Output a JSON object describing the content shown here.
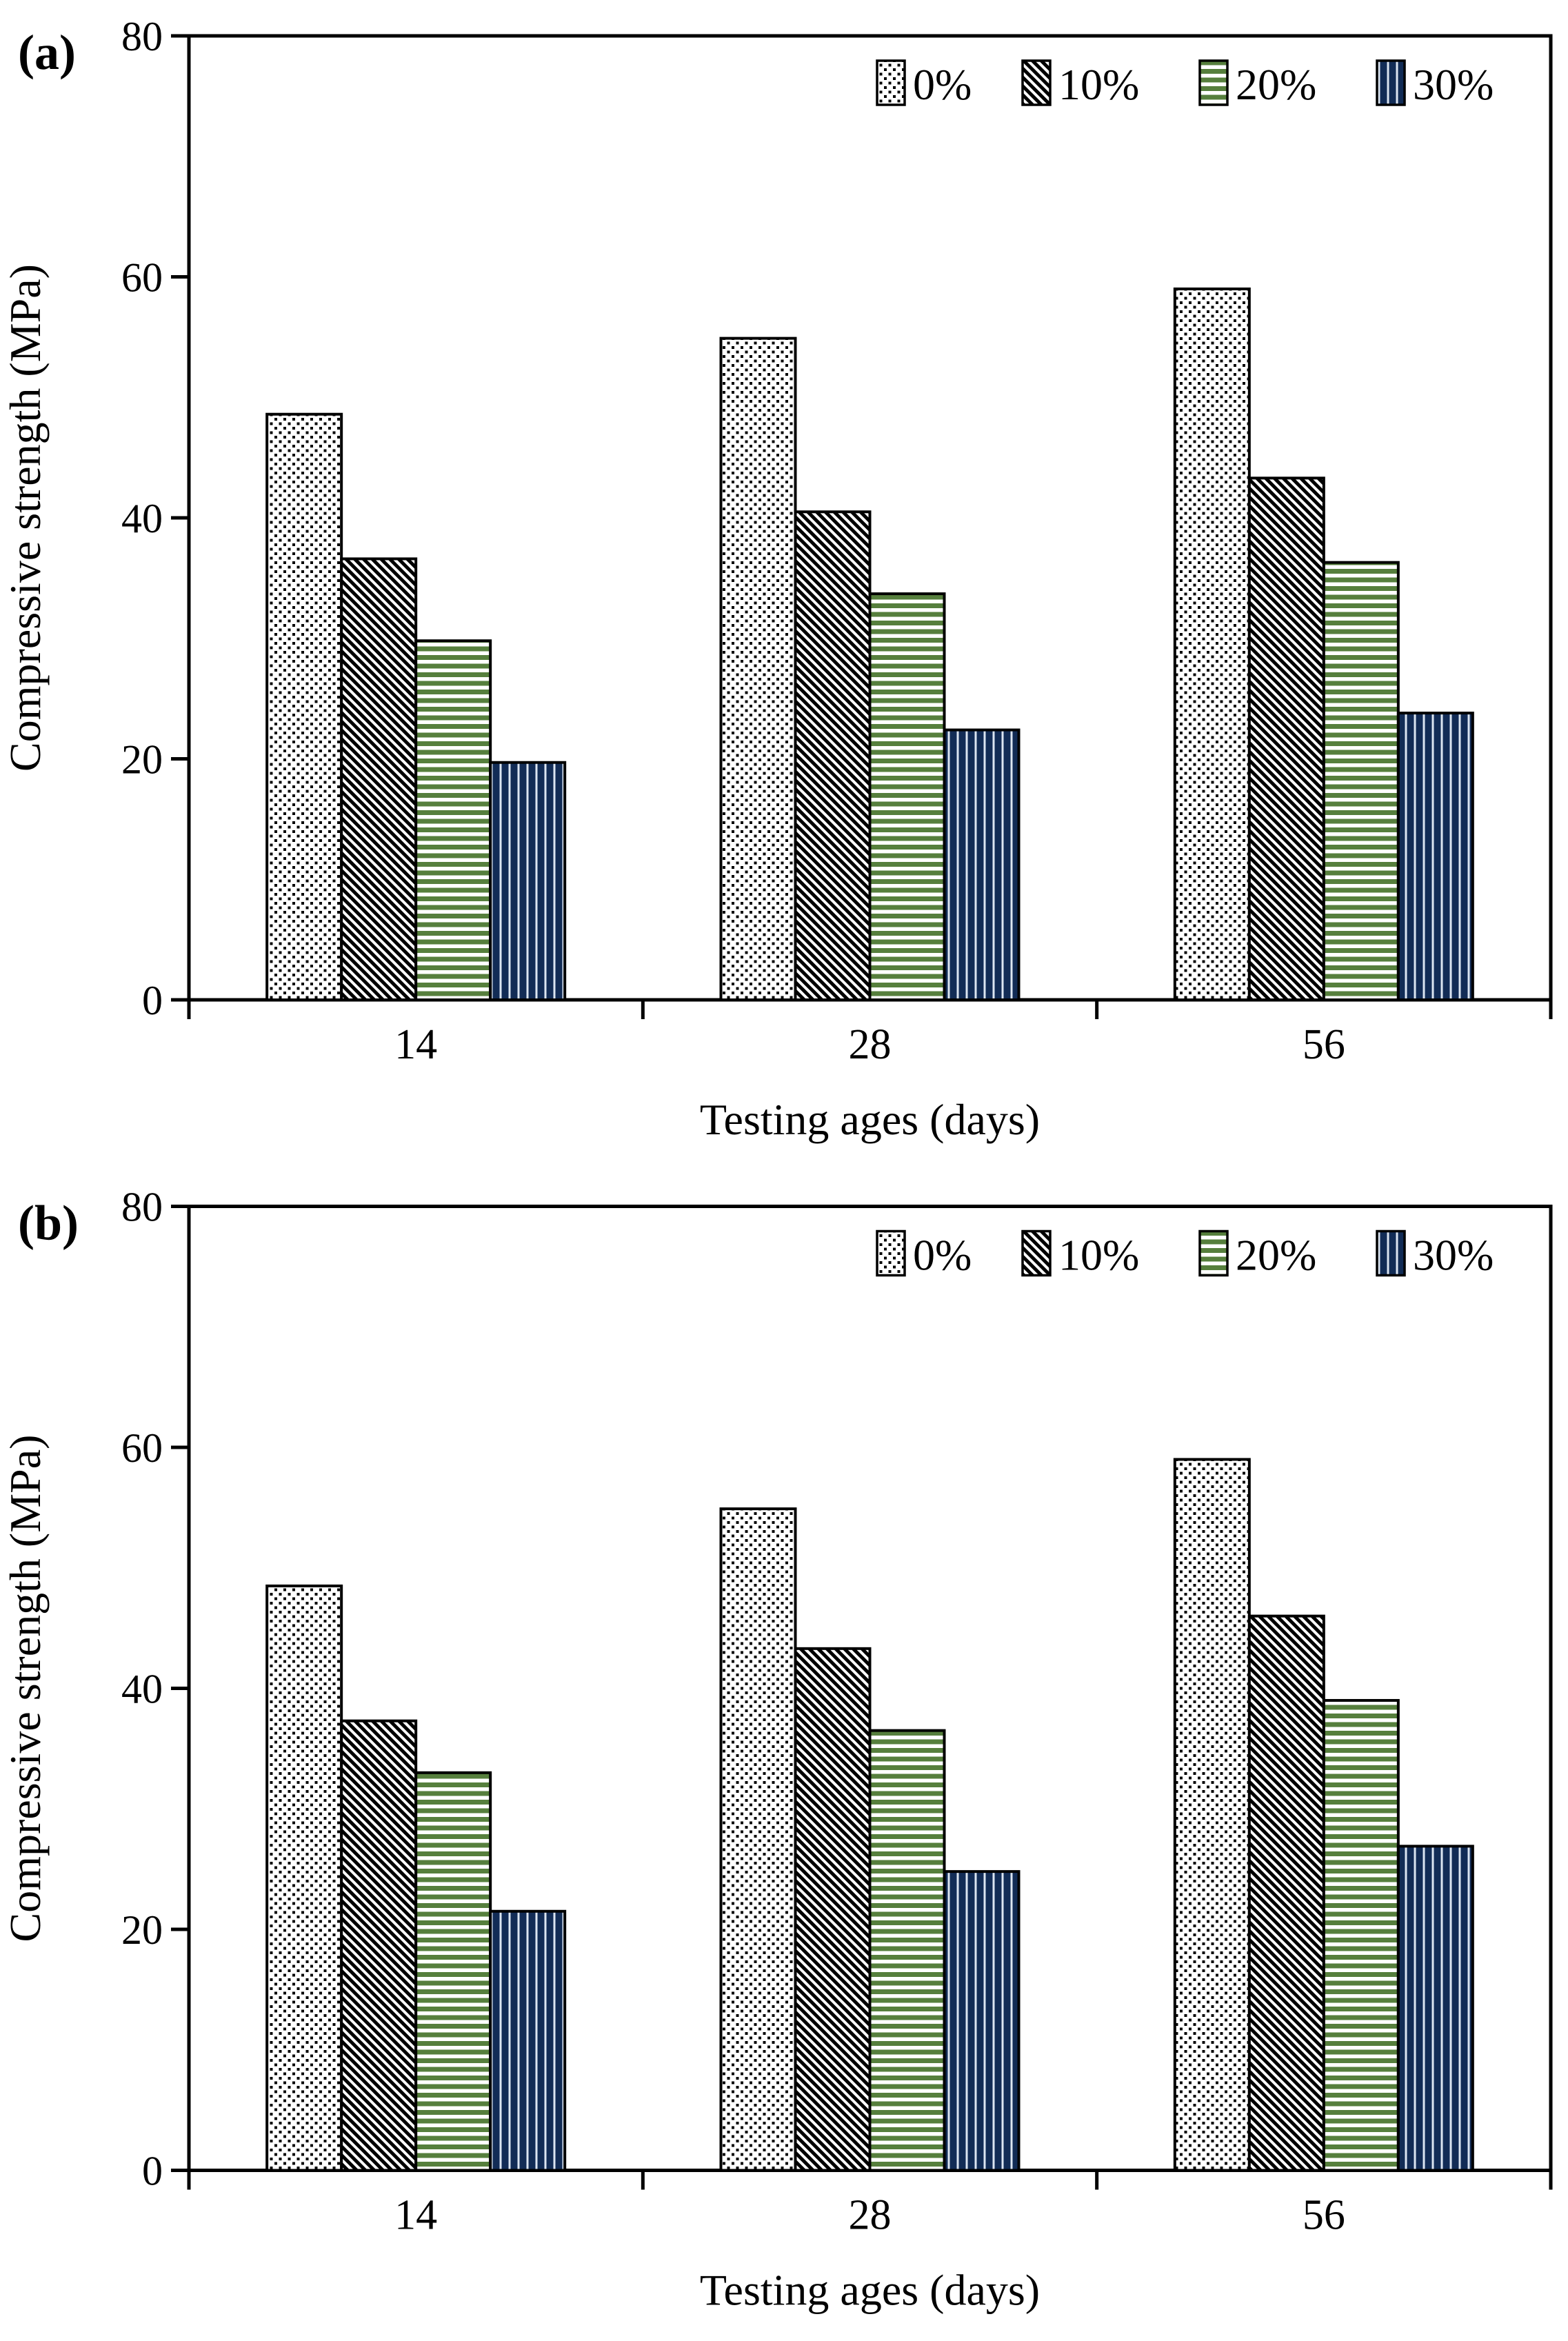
{
  "figure_caption": "",
  "colors": {
    "background": "#ffffff",
    "text": "#000000",
    "bar_outline": "#000000",
    "dots_black": "#000000",
    "hatch_black": "#000000",
    "green_stripe": "#567f3d",
    "navy": "#122c56",
    "navy_stripe_light": "#dbe5f1",
    "white": "#ffffff"
  },
  "chart_data": [
    {
      "type": "bar",
      "panel_label": "(a)",
      "title": "",
      "categories": [
        "14",
        "28",
        "56"
      ],
      "series": [
        {
          "name": "0%",
          "pattern": "dots",
          "values": [
            48.6,
            54.9,
            59.0
          ]
        },
        {
          "name": "10%",
          "pattern": "diagonal-hatch",
          "values": [
            36.6,
            40.5,
            43.3
          ]
        },
        {
          "name": "20%",
          "pattern": "horizontal-stripes",
          "values": [
            29.8,
            33.7,
            36.3
          ]
        },
        {
          "name": "30%",
          "pattern": "vertical-stripes",
          "values": [
            19.7,
            22.4,
            23.8
          ]
        }
      ],
      "xlabel": "Testing ages (days)",
      "ylabel": "Compressive strength (MPa)",
      "ylim": [
        0,
        80
      ],
      "yticks": [
        0,
        20,
        40,
        60,
        80
      ],
      "legend_position": "top-right-inside",
      "grid": false
    },
    {
      "type": "bar",
      "panel_label": "(b)",
      "title": "",
      "categories": [
        "14",
        "28",
        "56"
      ],
      "series": [
        {
          "name": "0%",
          "pattern": "dots",
          "values": [
            48.5,
            54.9,
            59.0
          ]
        },
        {
          "name": "10%",
          "pattern": "diagonal-hatch",
          "values": [
            37.3,
            43.3,
            46.0
          ]
        },
        {
          "name": "20%",
          "pattern": "horizontal-stripes",
          "values": [
            33.0,
            36.5,
            39.0
          ]
        },
        {
          "name": "30%",
          "pattern": "vertical-stripes",
          "values": [
            21.5,
            24.8,
            26.9
          ]
        }
      ],
      "xlabel": "Testing ages (days)",
      "ylabel": "Compressive strength (MPa)",
      "ylim": [
        0,
        80
      ],
      "yticks": [
        0,
        20,
        40,
        60,
        80
      ],
      "legend_position": "top-right-inside",
      "grid": false
    }
  ]
}
